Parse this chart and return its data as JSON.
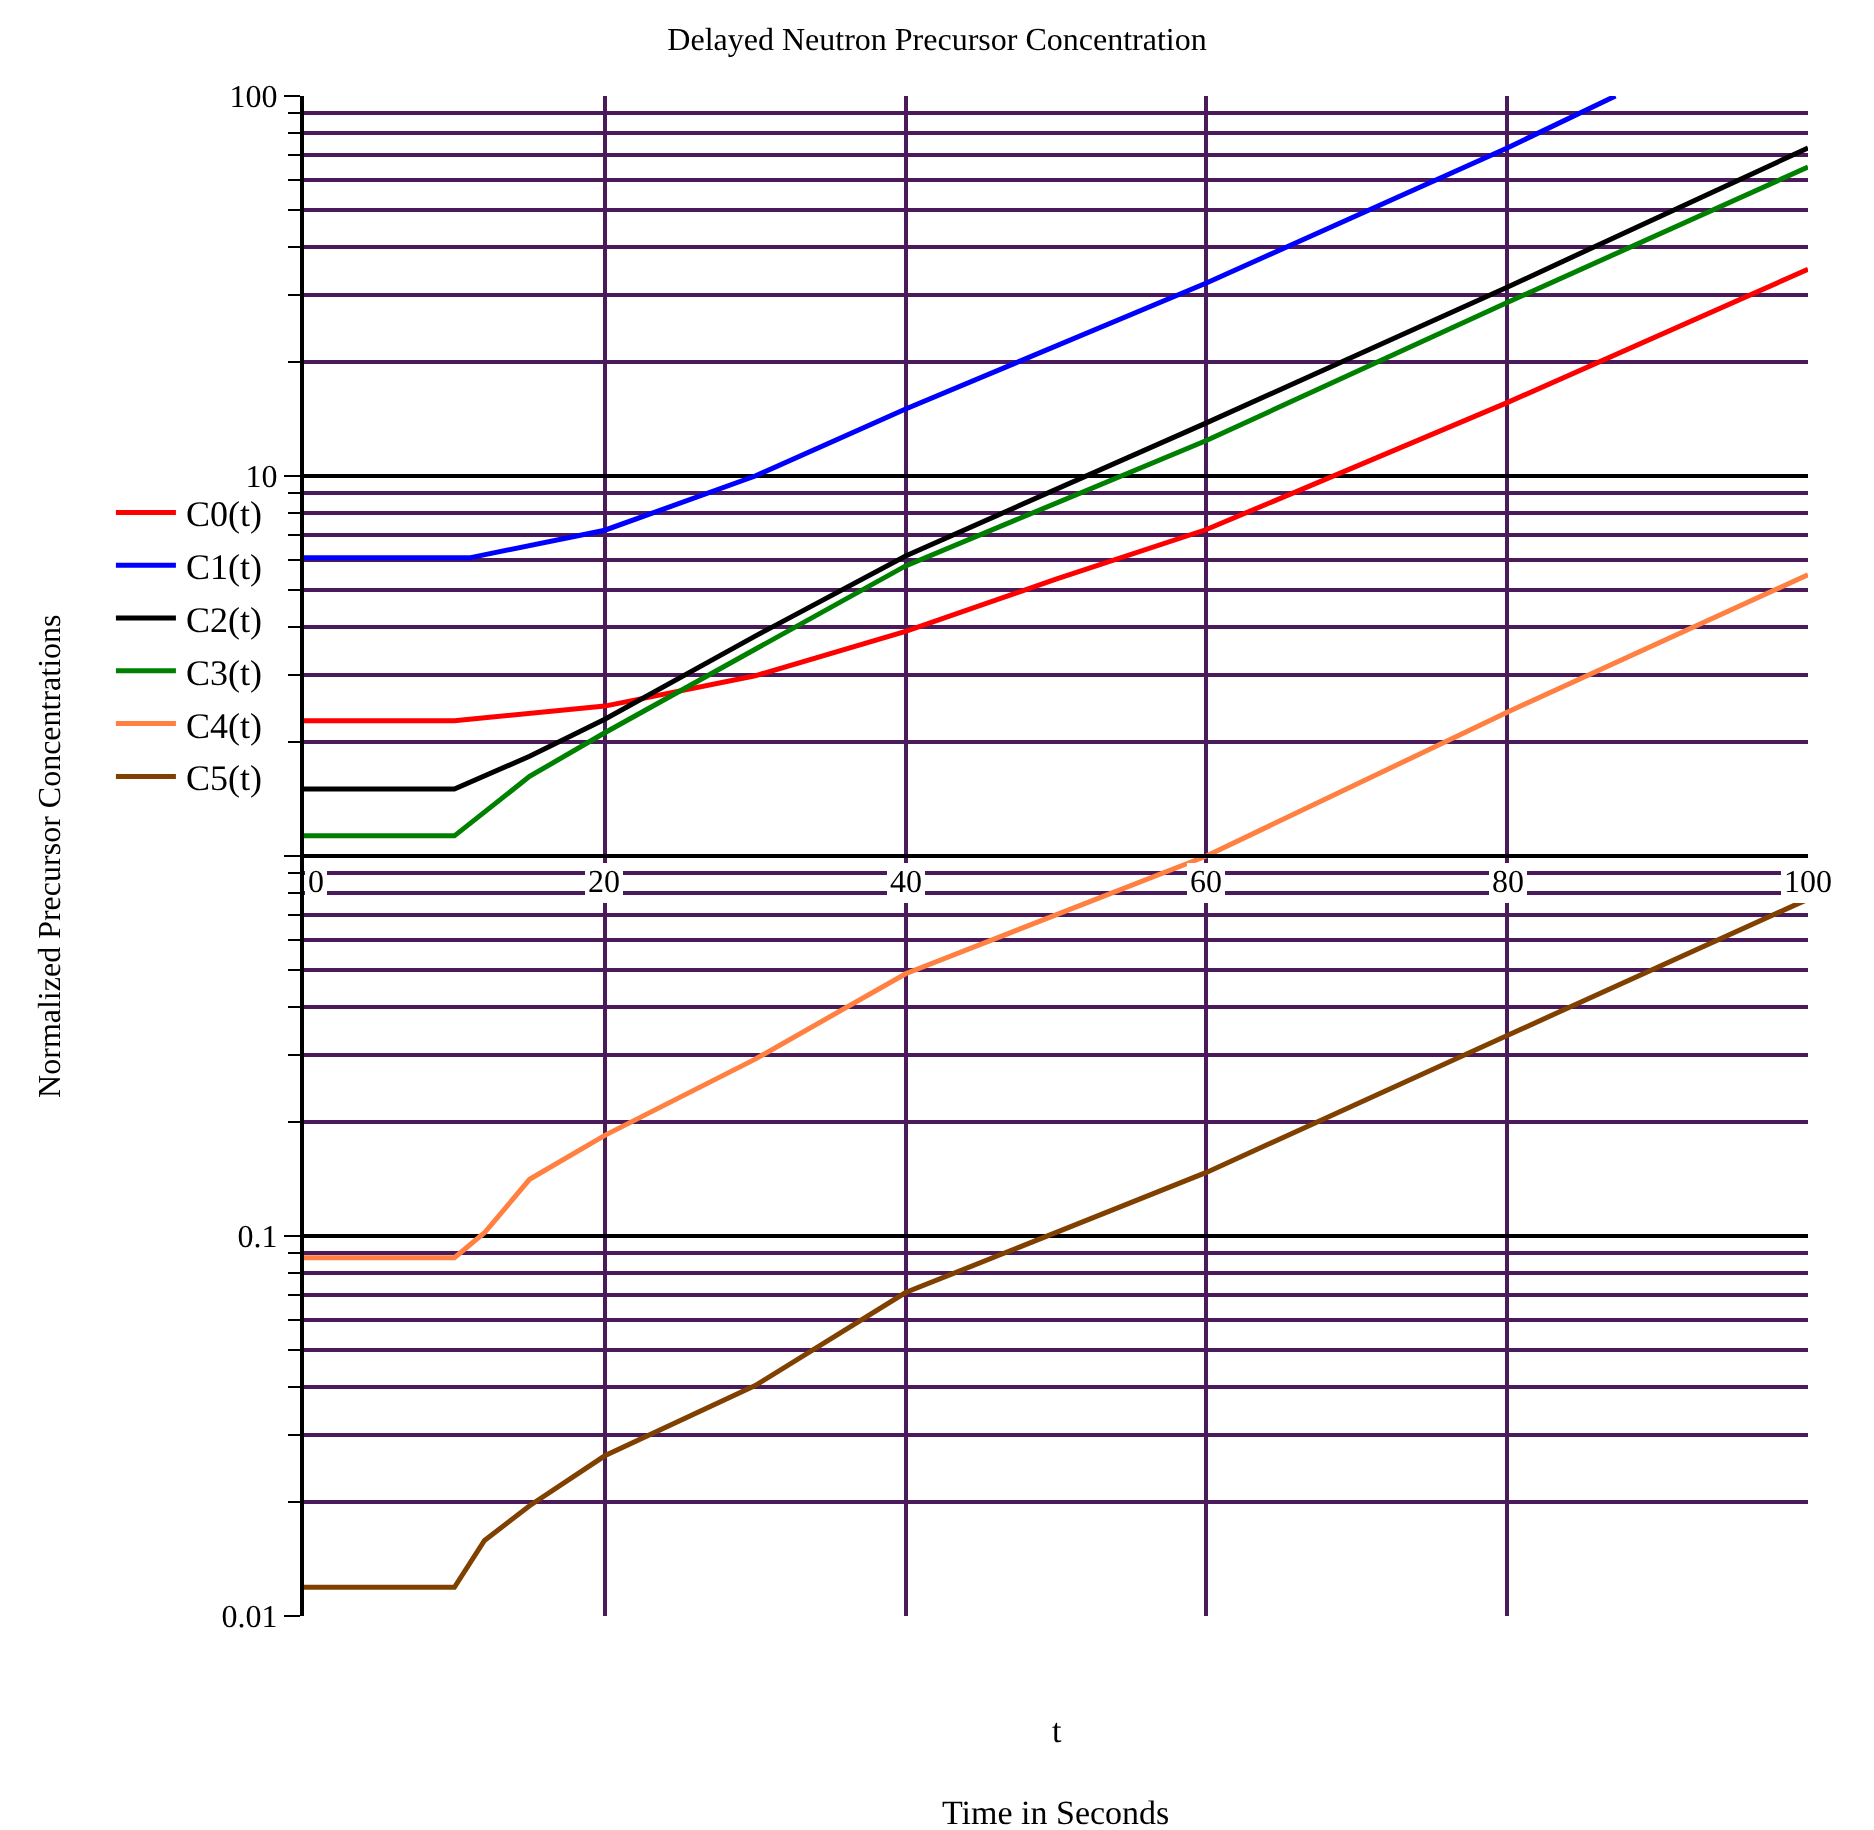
{
  "chart_data": {
    "type": "line",
    "title": "Delayed Neutron Precursor Concentration",
    "xlabel": "t",
    "ylabel": "Normalized Precursor Concentrations",
    "annotations": [
      "Time in Seconds"
    ],
    "series": [
      {
        "name": "C0(t)",
        "color": "#ff0000",
        "x": [
          0,
          10,
          20,
          30,
          40,
          50,
          60,
          80,
          100
        ],
        "values": [
          2.27,
          2.27,
          2.48,
          2.98,
          3.9,
          5.35,
          7.23,
          15.6,
          35
        ]
      },
      {
        "name": "C1(t)",
        "color": "#0000ff",
        "x": [
          0,
          11,
          20,
          30,
          40,
          60,
          80,
          87.2
        ],
        "values": [
          6.09,
          6.09,
          7.2,
          10,
          15,
          32.2,
          73,
          100
        ]
      },
      {
        "name": "C2(t)",
        "color": "#000000",
        "x": [
          0,
          10,
          15,
          20,
          30,
          40,
          60,
          80,
          100
        ],
        "values": [
          1.5,
          1.5,
          1.83,
          2.29,
          3.79,
          6.16,
          13.8,
          31.4,
          73
        ]
      },
      {
        "name": "C3(t)",
        "color": "#008000",
        "x": [
          0,
          10,
          15,
          20,
          30,
          40,
          60,
          80,
          100
        ],
        "values": [
          1.13,
          1.13,
          1.62,
          2.11,
          3.5,
          5.8,
          12.4,
          28.6,
          65
        ]
      },
      {
        "name": "C4(t)",
        "color": "#ff8040",
        "x": [
          0,
          10,
          12,
          15,
          20,
          30,
          40,
          60,
          80,
          100
        ],
        "values": [
          0.0877,
          0.0877,
          0.102,
          0.141,
          0.184,
          0.292,
          0.49,
          1,
          2.39,
          5.5
        ]
      },
      {
        "name": "C5(t)",
        "color": "#804000",
        "x": [
          0,
          10,
          12,
          15,
          20,
          30,
          40,
          60,
          80,
          100
        ],
        "values": [
          0.0119,
          0.0119,
          0.0158,
          0.0195,
          0.0264,
          0.0404,
          0.071,
          0.147,
          0.337,
          0.77
        ]
      }
    ],
    "xlim": [
      0,
      100
    ],
    "xticks": [
      0,
      20,
      40,
      60,
      80,
      100
    ],
    "ylim": [
      0.01,
      100
    ],
    "yticks": [
      0.01,
      0.1,
      {
        "value": 1,
        "label": null
      },
      10,
      100
    ],
    "log": true,
    "grid": true,
    "legend": "left",
    "marker": "none",
    "line_style": "solid"
  }
}
